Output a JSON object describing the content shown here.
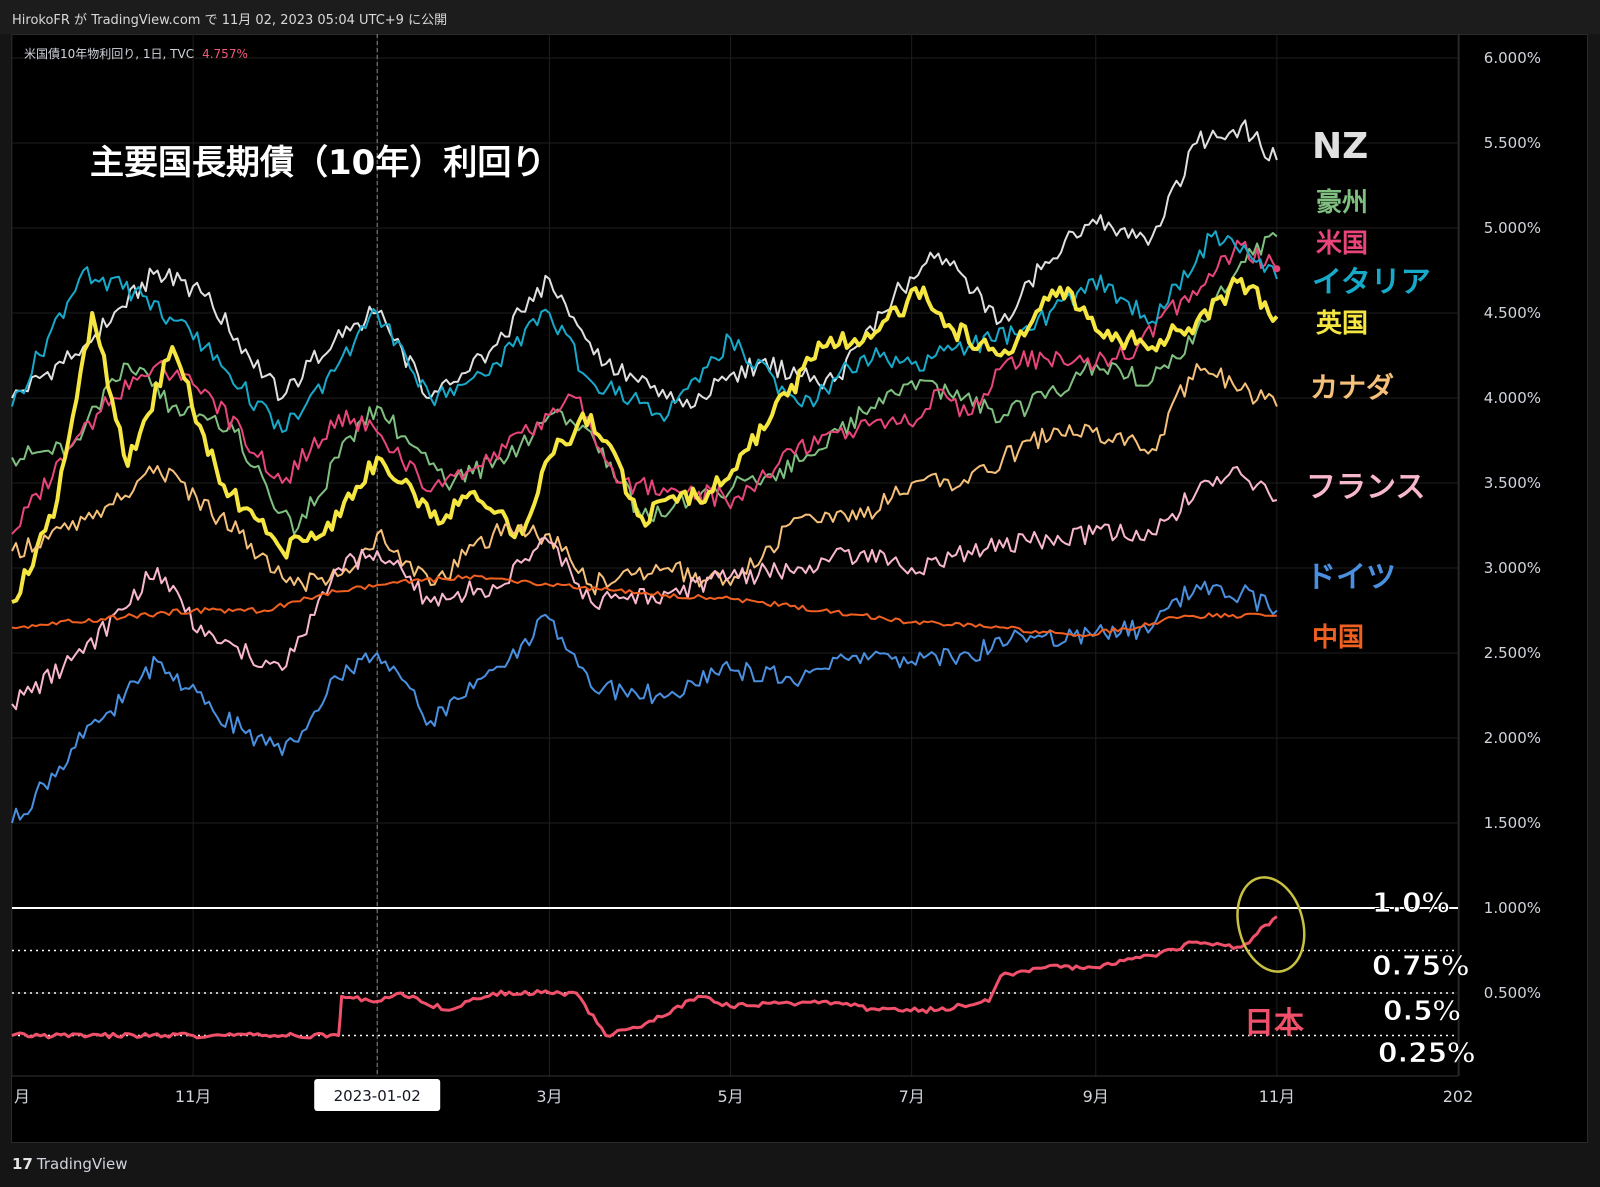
{
  "attribution": "HirokoFR が TradingView.com で 11月 02, 2023 05:04 UTC+9 に公開",
  "symbol_info": "米国債10年物利回り, 1日, TVC",
  "symbol_value": "4.757%",
  "brand": {
    "logo": "17",
    "name": "TradingView"
  },
  "chart_data": {
    "type": "line",
    "title": "主要国長期債（10年）利回り",
    "y_tick_labels": [
      "6.000%",
      "5.500%",
      "5.000%",
      "4.500%",
      "4.000%",
      "3.500%",
      "3.000%",
      "2.500%",
      "2.000%",
      "1.500%",
      "1.000%",
      "0.500%"
    ],
    "y_ticks": [
      6.0,
      5.5,
      5.0,
      4.5,
      4.0,
      3.5,
      3.0,
      2.5,
      2.0,
      1.5,
      1.0,
      0.5
    ],
    "ylim": [
      0.0,
      6.2
    ],
    "x_tick_labels": [
      "月",
      "11月",
      "2023-01-02",
      "3月",
      "5月",
      "7月",
      "9月",
      "11月",
      "202"
    ],
    "x_ticks": [
      "2022-09-01",
      "2022-11-01",
      "2023-01-02",
      "2023-03-01",
      "2023-05-01",
      "2023-07-01",
      "2023-09-01",
      "2023-11-01",
      "2024-01-01"
    ],
    "xlim": [
      "2022-09-01",
      "2024-01-01"
    ],
    "crosshair_date": "2023-01-02",
    "grid": true,
    "reference_lines": [
      {
        "y": 1.0,
        "label": "1.0%",
        "style": "solid"
      },
      {
        "y": 0.75,
        "label": "0.75%",
        "style": "dotted"
      },
      {
        "y": 0.5,
        "label": "0.5%",
        "style": "dotted"
      },
      {
        "y": 0.25,
        "label": "0.25%",
        "style": "dotted"
      }
    ],
    "series": [
      {
        "name": "NZ",
        "color": "#e0e0e0",
        "width": 2,
        "x": [
          "2022-09-01",
          "2022-09-25",
          "2022-10-20",
          "2022-11-05",
          "2022-12-01",
          "2022-12-20",
          "2023-01-02",
          "2023-01-20",
          "2023-02-10",
          "2023-03-01",
          "2023-03-20",
          "2023-04-15",
          "2023-05-10",
          "2023-06-05",
          "2023-06-25",
          "2023-07-10",
          "2023-07-31",
          "2023-08-15",
          "2023-08-31",
          "2023-09-20",
          "2023-10-05",
          "2023-10-20",
          "2023-11-01"
        ],
        "y": [
          4.0,
          4.3,
          4.75,
          4.6,
          4.0,
          4.4,
          4.5,
          4.0,
          4.3,
          4.7,
          4.2,
          3.95,
          4.2,
          4.1,
          4.6,
          4.85,
          4.45,
          4.8,
          5.05,
          4.95,
          5.5,
          5.6,
          5.4
        ]
      },
      {
        "name": "豪州",
        "color": "#7fbf7f",
        "width": 2,
        "x": [
          "2022-09-01",
          "2022-09-20",
          "2022-10-10",
          "2022-10-25",
          "2022-11-15",
          "2022-12-05",
          "2022-12-20",
          "2023-01-02",
          "2023-01-25",
          "2023-02-15",
          "2023-03-01",
          "2023-03-15",
          "2023-04-01",
          "2023-04-20",
          "2023-05-15",
          "2023-06-01",
          "2023-06-20",
          "2023-07-01",
          "2023-07-15",
          "2023-08-01",
          "2023-08-15",
          "2023-09-01",
          "2023-09-20",
          "2023-10-05",
          "2023-10-20",
          "2023-11-01"
        ],
        "y": [
          3.65,
          3.7,
          4.2,
          3.95,
          3.8,
          3.2,
          3.65,
          3.95,
          3.5,
          3.65,
          3.9,
          3.8,
          3.3,
          3.4,
          3.55,
          3.7,
          4.0,
          4.1,
          4.0,
          3.9,
          4.0,
          4.2,
          4.1,
          4.4,
          4.8,
          4.95
        ]
      },
      {
        "name": "米国",
        "color": "#e8457a",
        "width": 2,
        "x": [
          "2022-09-01",
          "2022-09-20",
          "2022-10-05",
          "2022-10-20",
          "2022-11-05",
          "2022-12-01",
          "2022-12-20",
          "2023-01-02",
          "2023-01-20",
          "2023-02-05",
          "2023-03-01",
          "2023-03-10",
          "2023-03-25",
          "2023-04-15",
          "2023-05-05",
          "2023-05-20",
          "2023-06-10",
          "2023-06-30",
          "2023-07-10",
          "2023-07-20",
          "2023-08-01",
          "2023-08-20",
          "2023-09-01",
          "2023-09-15",
          "2023-10-01",
          "2023-10-20",
          "2023-11-01"
        ],
        "y": [
          3.2,
          3.7,
          4.0,
          4.2,
          4.05,
          3.5,
          3.9,
          3.8,
          3.45,
          3.6,
          3.9,
          4.0,
          3.5,
          3.45,
          3.4,
          3.7,
          3.8,
          3.85,
          4.05,
          3.9,
          4.2,
          4.25,
          4.2,
          4.3,
          4.6,
          4.9,
          4.76
        ]
      },
      {
        "name": "イタリア",
        "color": "#17a9c9",
        "width": 2,
        "x": [
          "2022-09-01",
          "2022-09-25",
          "2022-10-15",
          "2022-11-05",
          "2022-12-01",
          "2022-12-20",
          "2023-01-02",
          "2023-01-20",
          "2023-02-10",
          "2023-03-01",
          "2023-03-15",
          "2023-04-10",
          "2023-05-01",
          "2023-05-25",
          "2023-06-15",
          "2023-07-01",
          "2023-07-20",
          "2023-08-10",
          "2023-08-31",
          "2023-09-20",
          "2023-10-10",
          "2023-10-25",
          "2023-11-01"
        ],
        "y": [
          3.95,
          4.75,
          4.6,
          4.3,
          3.8,
          4.2,
          4.5,
          4.0,
          4.2,
          4.5,
          4.1,
          3.9,
          4.35,
          3.95,
          4.25,
          4.2,
          4.3,
          4.4,
          4.7,
          4.45,
          4.95,
          4.8,
          4.7
        ]
      },
      {
        "name": "英国",
        "color": "#f5e642",
        "width": 4,
        "x": [
          "2022-09-01",
          "2022-09-15",
          "2022-09-28",
          "2022-10-10",
          "2022-10-25",
          "2022-11-10",
          "2022-12-01",
          "2022-12-15",
          "2023-01-02",
          "2023-01-20",
          "2023-02-05",
          "2023-02-20",
          "2023-03-01",
          "2023-03-15",
          "2023-04-01",
          "2023-04-25",
          "2023-05-15",
          "2023-06-01",
          "2023-06-20",
          "2023-07-05",
          "2023-07-15",
          "2023-07-31",
          "2023-08-20",
          "2023-09-01",
          "2023-09-20",
          "2023-10-05",
          "2023-10-20",
          "2023-11-01"
        ],
        "y": [
          2.8,
          3.3,
          4.5,
          3.6,
          4.3,
          3.5,
          3.1,
          3.2,
          3.65,
          3.3,
          3.4,
          3.2,
          3.65,
          3.9,
          3.3,
          3.45,
          3.9,
          4.3,
          4.4,
          4.65,
          4.4,
          4.25,
          4.65,
          4.4,
          4.3,
          4.45,
          4.7,
          4.48
        ]
      },
      {
        "name": "カナダ",
        "color": "#f5c07a",
        "width": 2,
        "x": [
          "2022-09-01",
          "2022-10-01",
          "2022-10-20",
          "2022-11-10",
          "2022-12-05",
          "2022-12-25",
          "2023-01-02",
          "2023-01-20",
          "2023-02-10",
          "2023-03-01",
          "2023-03-15",
          "2023-04-10",
          "2023-05-01",
          "2023-05-25",
          "2023-06-15",
          "2023-07-01",
          "2023-07-20",
          "2023-08-10",
          "2023-08-31",
          "2023-09-20",
          "2023-10-05",
          "2023-10-20",
          "2023-11-01"
        ],
        "y": [
          3.1,
          3.3,
          3.6,
          3.3,
          2.9,
          3.0,
          3.2,
          2.9,
          3.2,
          3.2,
          2.9,
          3.0,
          2.9,
          3.3,
          3.3,
          3.5,
          3.5,
          3.75,
          3.8,
          3.7,
          4.2,
          4.05,
          3.95
        ]
      },
      {
        "name": "フランス",
        "color": "#f8b8cc",
        "width": 2,
        "x": [
          "2022-09-01",
          "2022-09-25",
          "2022-10-20",
          "2022-11-05",
          "2022-12-01",
          "2022-12-20",
          "2023-01-02",
          "2023-01-20",
          "2023-02-10",
          "2023-03-01",
          "2023-03-15",
          "2023-04-10",
          "2023-05-01",
          "2023-05-25",
          "2023-06-15",
          "2023-07-01",
          "2023-07-20",
          "2023-08-10",
          "2023-08-31",
          "2023-09-20",
          "2023-10-05",
          "2023-10-20",
          "2023-11-01"
        ],
        "y": [
          2.2,
          2.5,
          3.0,
          2.6,
          2.4,
          3.0,
          3.1,
          2.8,
          2.9,
          3.15,
          2.8,
          2.85,
          2.95,
          3.0,
          3.1,
          3.0,
          3.1,
          3.15,
          3.2,
          3.2,
          3.45,
          3.55,
          3.4
        ]
      },
      {
        "name": "ドイツ",
        "color": "#4a90e0",
        "width": 2,
        "x": [
          "2022-09-01",
          "2022-09-25",
          "2022-10-20",
          "2022-11-05",
          "2022-12-01",
          "2022-12-20",
          "2023-01-02",
          "2023-01-20",
          "2023-02-10",
          "2023-03-01",
          "2023-03-15",
          "2023-04-10",
          "2023-05-01",
          "2023-05-25",
          "2023-06-15",
          "2023-07-01",
          "2023-07-20",
          "2023-08-10",
          "2023-08-31",
          "2023-09-20",
          "2023-10-05",
          "2023-10-20",
          "2023-11-01"
        ],
        "y": [
          1.5,
          2.0,
          2.45,
          2.2,
          1.9,
          2.35,
          2.5,
          2.1,
          2.4,
          2.7,
          2.3,
          2.25,
          2.4,
          2.35,
          2.5,
          2.45,
          2.5,
          2.6,
          2.6,
          2.65,
          2.9,
          2.85,
          2.75
        ]
      },
      {
        "name": "中国",
        "color": "#f06020",
        "width": 2,
        "x": [
          "2022-09-01",
          "2022-10-01",
          "2022-11-01",
          "2022-11-25",
          "2022-12-15",
          "2023-01-02",
          "2023-02-01",
          "2023-03-01",
          "2023-04-01",
          "2023-05-01",
          "2023-06-01",
          "2023-07-01",
          "2023-08-01",
          "2023-08-25",
          "2023-09-15",
          "2023-10-01",
          "2023-11-01"
        ],
        "y": [
          2.65,
          2.7,
          2.75,
          2.75,
          2.85,
          2.9,
          2.95,
          2.9,
          2.85,
          2.82,
          2.75,
          2.68,
          2.65,
          2.6,
          2.65,
          2.72,
          2.72
        ]
      },
      {
        "name": "日本",
        "color": "#f0506a",
        "width": 3,
        "x": [
          "2022-09-01",
          "2022-10-01",
          "2022-11-01",
          "2022-12-01",
          "2022-12-20",
          "2022-12-21",
          "2023-01-02",
          "2023-01-10",
          "2023-01-25",
          "2023-02-10",
          "2023-03-01",
          "2023-03-10",
          "2023-03-20",
          "2023-04-01",
          "2023-04-20",
          "2023-05-01",
          "2023-06-01",
          "2023-06-20",
          "2023-07-10",
          "2023-07-27",
          "2023-07-31",
          "2023-08-15",
          "2023-09-01",
          "2023-09-20",
          "2023-10-05",
          "2023-10-20",
          "2023-11-01"
        ],
        "y": [
          0.25,
          0.25,
          0.25,
          0.25,
          0.25,
          0.48,
          0.45,
          0.5,
          0.4,
          0.5,
          0.5,
          0.5,
          0.25,
          0.3,
          0.48,
          0.42,
          0.45,
          0.4,
          0.4,
          0.45,
          0.6,
          0.65,
          0.65,
          0.72,
          0.8,
          0.77,
          0.95
        ]
      }
    ],
    "series_labels": [
      {
        "text": "NZ",
        "color": "#e0e0e0"
      },
      {
        "text": "豪州",
        "color": "#7fbf7f"
      },
      {
        "text": "米国",
        "color": "#e8457a"
      },
      {
        "text": "イタリア",
        "color": "#17a9c9"
      },
      {
        "text": "英国",
        "color": "#f5e642"
      },
      {
        "text": "カナダ",
        "color": "#f5c07a"
      },
      {
        "text": "フランス",
        "color": "#f8b8cc"
      },
      {
        "text": "ドイツ",
        "color": "#4a90e0"
      },
      {
        "text": "中国",
        "color": "#f06020"
      },
      {
        "text": "日本",
        "color": "#f0506a"
      }
    ]
  }
}
